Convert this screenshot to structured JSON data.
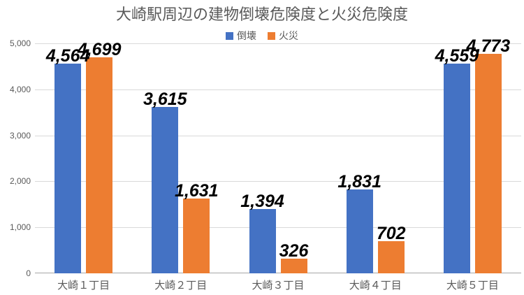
{
  "chart_data": {
    "type": "bar",
    "title": "大崎駅周辺の建物倒壊危険度と火災危険度",
    "categories": [
      "大崎１丁目",
      "大崎２丁目",
      "大崎３丁目",
      "大崎４丁目",
      "大崎５丁目"
    ],
    "series": [
      {
        "name": "倒壊",
        "color": "#4472C4",
        "values": [
          4564,
          3615,
          1394,
          1831,
          4559
        ],
        "labels": [
          "4,564",
          "3,615",
          "1,394",
          "1,831",
          "4,559"
        ]
      },
      {
        "name": "火災",
        "color": "#ED7D31",
        "values": [
          4699,
          1631,
          326,
          702,
          4773
        ],
        "labels": [
          "4,699",
          "1,631",
          "326",
          "702",
          "4,773"
        ]
      }
    ],
    "ylim": [
      0,
      5000
    ],
    "yticks": [
      0,
      1000,
      2000,
      3000,
      4000,
      5000
    ],
    "ytick_labels": [
      "0",
      "1,000",
      "2,000",
      "3,000",
      "4,000",
      "5,000"
    ],
    "grid": true,
    "legend_position": "top-center",
    "xlabel": "",
    "ylabel": ""
  },
  "colors": {
    "title_text": "#595959",
    "axis_text": "#595959",
    "gridline": "#d9d9d9",
    "axis_line": "#a6a6a6",
    "data_label": "#000000",
    "background": "#ffffff"
  }
}
